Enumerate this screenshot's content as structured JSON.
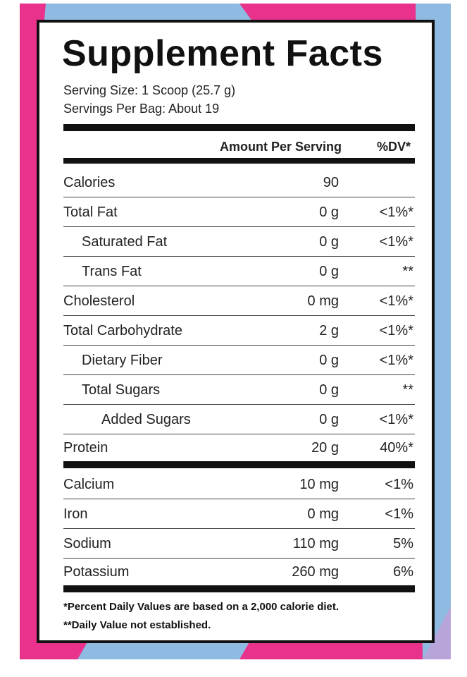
{
  "title": "Supplement Facts",
  "serving_size": "Serving Size: 1 Scoop (25.7 g)",
  "servings_per_bag": "Servings Per Bag: About 19",
  "header": {
    "amount": "Amount Per Serving",
    "dv": "%DV*"
  },
  "rows": [
    [
      "Calories",
      "90"
    ],
    [
      "Total Fat",
      "0 g",
      "<1%*"
    ],
    [
      "Saturated Fat",
      "0 g",
      "<1%*"
    ],
    [
      "Trans Fat",
      "0 g",
      "**"
    ],
    [
      "Cholesterol",
      "0 mg",
      "<1%*"
    ],
    [
      "Total Carbohydrate",
      "2 g",
      "<1%*"
    ],
    [
      "Dietary Fiber",
      "0 g",
      "<1%*"
    ],
    [
      "Total Sugars",
      "0 g",
      "**"
    ],
    [
      "Added Sugars",
      "0 g",
      "<1%*"
    ],
    [
      "Protein",
      "20 g",
      "40%*"
    ],
    [
      "Calcium",
      "10 mg",
      "<1%"
    ],
    [
      "Iron",
      "0 mg",
      "<1%"
    ],
    [
      "Sodium",
      "110 mg",
      "5%"
    ],
    [
      "Potassium",
      "260 mg",
      "6%"
    ]
  ],
  "footnotes": [
    "*Percent Daily Values are based on a 2,000 calorie diet.",
    "**Daily Value not established."
  ]
}
